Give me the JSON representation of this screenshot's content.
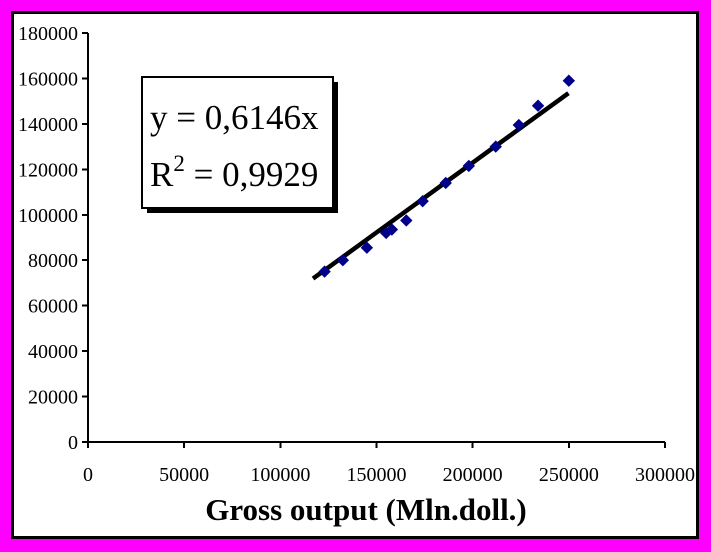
{
  "frame": {
    "outer_border_color": "#FF00FF",
    "inner_border_color": "#000000",
    "background_color": "#FFFFFF"
  },
  "chart_data": {
    "type": "scatter",
    "title": "",
    "xlabel": "Gross output (Mln.doll.)",
    "ylabel": "",
    "xlim": [
      0,
      300000
    ],
    "ylim": [
      0,
      180000
    ],
    "x_ticks": [
      0,
      50000,
      100000,
      150000,
      200000,
      250000,
      300000
    ],
    "y_ticks": [
      0,
      20000,
      40000,
      60000,
      80000,
      100000,
      120000,
      140000,
      160000,
      180000
    ],
    "grid": false,
    "legend_position": "none",
    "marker": "diamond",
    "marker_color": "#00008B",
    "axis_color": "#000000",
    "text_color": "#000000",
    "points": [
      [
        123000,
        75000
      ],
      [
        132500,
        80000
      ],
      [
        145000,
        85500
      ],
      [
        155000,
        92000
      ],
      [
        158000,
        93500
      ],
      [
        165500,
        97500
      ],
      [
        174000,
        106000
      ],
      [
        186000,
        114000
      ],
      [
        198000,
        121500
      ],
      [
        212000,
        130000
      ],
      [
        224000,
        139500
      ],
      [
        234000,
        148000
      ],
      [
        250000,
        159000
      ]
    ],
    "trendline": {
      "slope": 0.6146,
      "intercept": 0,
      "x_range": [
        117000,
        249800
      ],
      "color": "#000000"
    },
    "annotation": {
      "line1": "y = 0,6146x",
      "line2": "R² = 0,9929",
      "line2_base": "R",
      "line2_sup": "2",
      "line2_rest": " = 0,9929"
    }
  }
}
